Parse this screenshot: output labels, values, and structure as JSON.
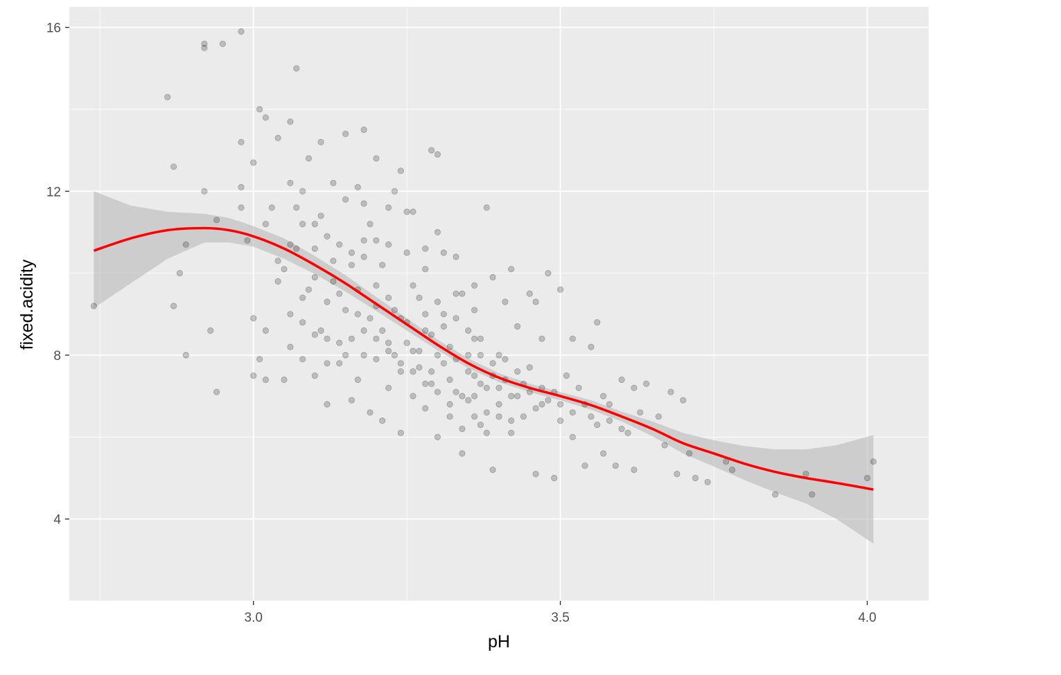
{
  "chart_data": {
    "type": "scatter",
    "xlabel": "pH",
    "ylabel": "fixed.acidity",
    "xlim": [
      2.7,
      4.1
    ],
    "ylim": [
      2.0,
      16.5
    ],
    "x_ticks": [
      3.0,
      3.5,
      4.0
    ],
    "x_tick_labels": [
      "3.0",
      "3.5",
      "4.0"
    ],
    "y_ticks": [
      4,
      8,
      12,
      16
    ],
    "y_tick_labels": [
      "4",
      "8",
      "12",
      "16"
    ],
    "grid": true,
    "colors": {
      "panel": "#ebebeb",
      "grid": "#ffffff",
      "points": "#000000",
      "smooth": "#ff0000",
      "band": "#bdbdbd"
    },
    "smooth": {
      "method": "loess",
      "x": [
        2.74,
        2.8,
        2.86,
        2.92,
        2.96,
        3.0,
        3.05,
        3.1,
        3.15,
        3.2,
        3.25,
        3.3,
        3.35,
        3.4,
        3.45,
        3.5,
        3.55,
        3.6,
        3.65,
        3.7,
        3.75,
        3.8,
        3.85,
        3.9,
        3.95,
        4.01
      ],
      "y": [
        10.55,
        10.85,
        11.05,
        11.1,
        11.05,
        10.9,
        10.6,
        10.2,
        9.75,
        9.25,
        8.75,
        8.25,
        7.8,
        7.45,
        7.2,
        7.0,
        6.78,
        6.5,
        6.2,
        5.85,
        5.6,
        5.35,
        5.15,
        5.0,
        4.88,
        4.72
      ],
      "ymin": [
        9.15,
        9.75,
        10.35,
        10.75,
        10.75,
        10.65,
        10.35,
        9.98,
        9.55,
        9.08,
        8.6,
        8.12,
        7.68,
        7.34,
        7.1,
        6.9,
        6.67,
        6.38,
        6.02,
        5.6,
        5.28,
        4.95,
        4.65,
        4.38,
        4.0,
        3.4
      ],
      "ymax": [
        12.0,
        11.65,
        11.5,
        11.45,
        11.35,
        11.15,
        10.85,
        10.42,
        9.95,
        9.42,
        8.9,
        8.38,
        7.92,
        7.56,
        7.3,
        7.1,
        6.9,
        6.62,
        6.38,
        6.1,
        5.92,
        5.78,
        5.7,
        5.7,
        5.8,
        6.05
      ]
    },
    "points": [
      [
        2.74,
        9.2
      ],
      [
        2.86,
        14.3
      ],
      [
        2.87,
        12.6
      ],
      [
        2.88,
        10.0
      ],
      [
        2.87,
        9.2
      ],
      [
        2.89,
        10.7
      ],
      [
        2.89,
        8.0
      ],
      [
        2.92,
        15.6
      ],
      [
        2.92,
        15.5
      ],
      [
        2.92,
        12.0
      ],
      [
        2.93,
        8.6
      ],
      [
        2.94,
        7.1
      ],
      [
        2.94,
        11.3
      ],
      [
        2.95,
        15.6
      ],
      [
        2.98,
        15.9
      ],
      [
        2.98,
        13.2
      ],
      [
        2.98,
        12.1
      ],
      [
        2.98,
        11.6
      ],
      [
        2.99,
        10.8
      ],
      [
        3.0,
        12.7
      ],
      [
        3.0,
        8.9
      ],
      [
        3.0,
        7.5
      ],
      [
        3.01,
        7.9
      ],
      [
        3.01,
        14.0
      ],
      [
        3.02,
        13.8
      ],
      [
        3.02,
        11.2
      ],
      [
        3.02,
        8.6
      ],
      [
        3.02,
        7.4
      ],
      [
        3.03,
        11.6
      ],
      [
        3.04,
        9.8
      ],
      [
        3.04,
        13.3
      ],
      [
        3.05,
        10.1
      ],
      [
        3.05,
        7.4
      ],
      [
        3.06,
        13.7
      ],
      [
        3.06,
        12.2
      ],
      [
        3.06,
        8.2
      ],
      [
        3.07,
        15.0
      ],
      [
        3.07,
        11.6
      ],
      [
        3.07,
        10.6
      ],
      [
        3.08,
        7.9
      ],
      [
        3.08,
        8.8
      ],
      [
        3.08,
        12.0
      ],
      [
        3.09,
        12.8
      ],
      [
        3.1,
        10.6
      ],
      [
        3.1,
        9.9
      ],
      [
        3.1,
        7.5
      ],
      [
        3.11,
        13.2
      ],
      [
        3.11,
        11.4
      ],
      [
        3.12,
        9.3
      ],
      [
        3.12,
        8.4
      ],
      [
        3.12,
        6.8
      ],
      [
        3.13,
        12.2
      ],
      [
        3.13,
        10.3
      ],
      [
        3.14,
        9.5
      ],
      [
        3.14,
        7.8
      ],
      [
        3.15,
        13.4
      ],
      [
        3.15,
        11.8
      ],
      [
        3.15,
        8.0
      ],
      [
        3.16,
        10.5
      ],
      [
        3.16,
        6.9
      ],
      [
        3.17,
        12.1
      ],
      [
        3.17,
        9.0
      ],
      [
        3.17,
        7.4
      ],
      [
        3.18,
        13.5
      ],
      [
        3.18,
        10.8
      ],
      [
        3.18,
        8.6
      ],
      [
        3.19,
        11.2
      ],
      [
        3.19,
        6.6
      ],
      [
        3.2,
        12.8
      ],
      [
        3.2,
        9.7
      ],
      [
        3.2,
        7.9
      ],
      [
        3.21,
        10.2
      ],
      [
        3.21,
        6.4
      ],
      [
        3.22,
        11.6
      ],
      [
        3.22,
        8.3
      ],
      [
        3.22,
        7.2
      ],
      [
        3.23,
        9.1
      ],
      [
        3.23,
        12.0
      ],
      [
        3.24,
        12.5
      ],
      [
        3.24,
        7.6
      ],
      [
        3.24,
        6.1
      ],
      [
        3.25,
        10.5
      ],
      [
        3.25,
        8.8
      ],
      [
        3.26,
        11.5
      ],
      [
        3.26,
        7.0
      ],
      [
        3.27,
        9.4
      ],
      [
        3.27,
        8.1
      ],
      [
        3.28,
        6.7
      ],
      [
        3.28,
        10.1
      ],
      [
        3.29,
        13.0
      ],
      [
        3.29,
        8.5
      ],
      [
        3.29,
        7.3
      ],
      [
        3.3,
        12.9
      ],
      [
        3.3,
        11.0
      ],
      [
        3.3,
        6.0
      ],
      [
        3.31,
        9.0
      ],
      [
        3.31,
        7.8
      ],
      [
        3.32,
        8.2
      ],
      [
        3.32,
        6.5
      ],
      [
        3.33,
        10.4
      ],
      [
        3.33,
        7.1
      ],
      [
        3.34,
        9.5
      ],
      [
        3.34,
        5.6
      ],
      [
        3.35,
        8.0
      ],
      [
        3.35,
        6.9
      ],
      [
        3.36,
        9.1
      ],
      [
        3.36,
        7.5
      ],
      [
        3.37,
        8.4
      ],
      [
        3.37,
        6.3
      ],
      [
        3.38,
        11.6
      ],
      [
        3.38,
        7.2
      ],
      [
        3.39,
        9.9
      ],
      [
        3.39,
        5.2
      ],
      [
        3.4,
        8.0
      ],
      [
        3.4,
        6.8
      ],
      [
        3.41,
        7.4
      ],
      [
        3.41,
        9.3
      ],
      [
        3.42,
        6.1
      ],
      [
        3.42,
        10.1
      ],
      [
        3.43,
        8.7
      ],
      [
        3.43,
        7.0
      ],
      [
        3.44,
        6.5
      ],
      [
        3.45,
        9.5
      ],
      [
        3.45,
        7.7
      ],
      [
        3.46,
        5.1
      ],
      [
        3.46,
        9.3
      ],
      [
        3.47,
        6.8
      ],
      [
        3.47,
        8.4
      ],
      [
        3.48,
        10.0
      ],
      [
        3.49,
        7.1
      ],
      [
        3.49,
        5.0
      ],
      [
        3.5,
        9.6
      ],
      [
        3.5,
        6.4
      ],
      [
        3.51,
        7.5
      ],
      [
        3.52,
        6.0
      ],
      [
        3.52,
        8.4
      ],
      [
        3.53,
        7.2
      ],
      [
        3.54,
        5.3
      ],
      [
        3.55,
        8.2
      ],
      [
        3.55,
        6.5
      ],
      [
        3.56,
        8.8
      ],
      [
        3.57,
        7.0
      ],
      [
        3.57,
        5.6
      ],
      [
        3.58,
        6.4
      ],
      [
        3.59,
        5.3
      ],
      [
        3.6,
        7.4
      ],
      [
        3.61,
        6.1
      ],
      [
        3.62,
        7.2
      ],
      [
        3.62,
        5.2
      ],
      [
        3.63,
        6.6
      ],
      [
        3.64,
        7.3
      ],
      [
        3.66,
        6.5
      ],
      [
        3.67,
        5.8
      ],
      [
        3.68,
        7.1
      ],
      [
        3.69,
        5.1
      ],
      [
        3.7,
        6.9
      ],
      [
        3.71,
        5.6
      ],
      [
        3.72,
        5.0
      ],
      [
        3.74,
        4.9
      ],
      [
        3.77,
        5.4
      ],
      [
        3.78,
        5.2
      ],
      [
        3.85,
        4.6
      ],
      [
        3.9,
        5.1
      ],
      [
        3.91,
        4.6
      ],
      [
        4.0,
        5.0
      ],
      [
        4.01,
        5.4
      ],
      [
        3.35,
        7.6
      ],
      [
        3.36,
        7.0
      ],
      [
        3.4,
        7.2
      ],
      [
        3.38,
        6.6
      ],
      [
        3.33,
        7.9
      ],
      [
        3.3,
        8.0
      ],
      [
        3.28,
        8.6
      ],
      [
        3.26,
        8.1
      ],
      [
        3.32,
        7.4
      ],
      [
        3.42,
        7.0
      ],
      [
        3.44,
        7.3
      ],
      [
        3.39,
        7.8
      ],
      [
        3.37,
        7.3
      ],
      [
        3.34,
        7.0
      ],
      [
        3.46,
        6.7
      ],
      [
        3.48,
        6.9
      ],
      [
        3.36,
        8.4
      ],
      [
        3.31,
        8.7
      ],
      [
        3.29,
        7.6
      ],
      [
        3.27,
        7.7
      ],
      [
        3.25,
        8.3
      ],
      [
        3.23,
        8.0
      ],
      [
        3.21,
        8.6
      ],
      [
        3.19,
        8.9
      ],
      [
        3.17,
        9.6
      ],
      [
        3.16,
        10.2
      ],
      [
        3.18,
        10.4
      ],
      [
        3.2,
        9.2
      ],
      [
        3.22,
        9.4
      ],
      [
        3.24,
        8.9
      ],
      [
        3.15,
        9.1
      ],
      [
        3.13,
        9.8
      ],
      [
        3.14,
        10.7
      ],
      [
        3.12,
        10.9
      ],
      [
        3.1,
        11.2
      ],
      [
        3.11,
        8.6
      ],
      [
        3.09,
        9.6
      ],
      [
        3.2,
        10.8
      ],
      [
        3.26,
        9.7
      ],
      [
        3.28,
        9.0
      ],
      [
        3.3,
        9.3
      ],
      [
        3.33,
        8.9
      ],
      [
        3.35,
        8.6
      ],
      [
        3.37,
        8.0
      ],
      [
        3.39,
        7.5
      ],
      [
        3.41,
        7.9
      ],
      [
        3.43,
        7.6
      ],
      [
        3.45,
        7.1
      ],
      [
        3.47,
        7.2
      ],
      [
        3.5,
        6.8
      ],
      [
        3.52,
        6.6
      ],
      [
        3.54,
        6.8
      ],
      [
        3.56,
        6.3
      ],
      [
        3.58,
        6.8
      ],
      [
        3.6,
        6.2
      ],
      [
        3.38,
        6.1
      ],
      [
        3.4,
        6.5
      ],
      [
        3.42,
        6.4
      ],
      [
        3.36,
        6.5
      ],
      [
        3.34,
        6.2
      ],
      [
        3.32,
        6.8
      ],
      [
        3.3,
        7.1
      ],
      [
        3.28,
        7.3
      ],
      [
        3.26,
        7.6
      ],
      [
        3.24,
        7.8
      ],
      [
        3.22,
        8.1
      ],
      [
        3.2,
        8.4
      ],
      [
        3.18,
        8.0
      ],
      [
        3.16,
        8.4
      ],
      [
        3.14,
        8.3
      ],
      [
        3.12,
        7.8
      ],
      [
        3.1,
        8.5
      ],
      [
        3.08,
        9.4
      ],
      [
        3.06,
        9.0
      ],
      [
        3.04,
        10.3
      ],
      [
        3.06,
        10.7
      ],
      [
        3.08,
        11.2
      ],
      [
        3.18,
        11.7
      ],
      [
        3.22,
        10.7
      ],
      [
        3.25,
        11.5
      ],
      [
        3.28,
        10.6
      ],
      [
        3.31,
        10.5
      ],
      [
        3.33,
        9.5
      ],
      [
        3.36,
        9.7
      ]
    ]
  }
}
